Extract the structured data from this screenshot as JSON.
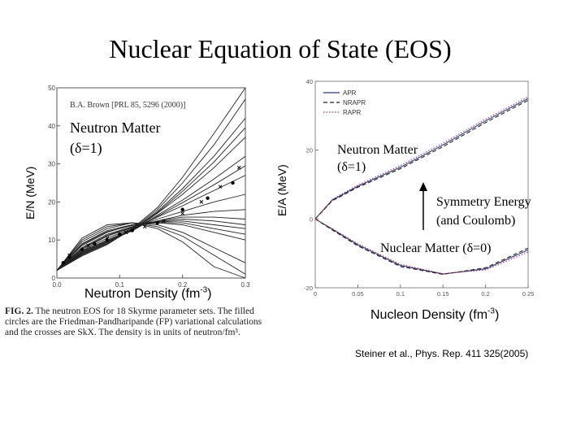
{
  "slide_title": "Nuclear Equation of State (EOS)",
  "citation": "Steiner et al., Phys. Rep. 411 325(2005)",
  "figure_caption": {
    "label": "FIG. 2.",
    "text": "The neutron EOS for 18 Skyrme parameter sets. The filled circles are the Friedman-Pandharipande (FP) variational calculations and the crosses are SkX. The density is in units of neutron/fm³."
  },
  "chart_data": [
    {
      "type": "line",
      "panel_label": "B.A. Brown [PRL 85, 5296 (2000)]",
      "annotation": "Neutron Matter (δ=1)",
      "xlabel": "Neutron Density (fm-3)",
      "ylabel": "E/N (MeV)",
      "xlim": [
        0,
        0.3
      ],
      "ylim": [
        0,
        50
      ],
      "x_ticks": [
        "0.0",
        "0.1",
        "0.2",
        "0.3"
      ],
      "y_ticks": [
        "0",
        "10",
        "20",
        "30",
        "40",
        "50"
      ],
      "series": [
        {
          "x": [
            0,
            0.04,
            0.08,
            0.12,
            0.16,
            0.2,
            0.25,
            0.3
          ],
          "y": [
            2,
            9,
            12.5,
            14,
            14.5,
            14,
            12,
            10
          ]
        },
        {
          "x": [
            0,
            0.04,
            0.08,
            0.12,
            0.16,
            0.2,
            0.25,
            0.3
          ],
          "y": [
            2,
            8.5,
            12,
            14,
            14.8,
            15,
            14,
            13
          ]
        },
        {
          "x": [
            0,
            0.04,
            0.08,
            0.12,
            0.16,
            0.2,
            0.25,
            0.3
          ],
          "y": [
            2,
            8,
            11.5,
            13.5,
            15,
            16,
            16,
            15.5
          ]
        },
        {
          "x": [
            0,
            0.04,
            0.08,
            0.12,
            0.16,
            0.2,
            0.25,
            0.3
          ],
          "y": [
            2,
            7.5,
            11,
            13.2,
            15,
            16.5,
            17.5,
            18
          ]
        },
        {
          "x": [
            0,
            0.04,
            0.08,
            0.12,
            0.16,
            0.2,
            0.25,
            0.3
          ],
          "y": [
            2,
            7.2,
            10.5,
            13,
            15.5,
            17.5,
            20,
            22
          ]
        },
        {
          "x": [
            0,
            0.04,
            0.08,
            0.12,
            0.16,
            0.2,
            0.25,
            0.3
          ],
          "y": [
            2,
            7,
            10,
            12.8,
            16,
            19,
            23,
            27
          ]
        },
        {
          "x": [
            0,
            0.04,
            0.08,
            0.12,
            0.16,
            0.2,
            0.25,
            0.3
          ],
          "y": [
            2,
            6.8,
            9.8,
            12.5,
            16.5,
            20.5,
            26,
            32
          ]
        },
        {
          "x": [
            0,
            0.04,
            0.08,
            0.12,
            0.16,
            0.2,
            0.25,
            0.3
          ],
          "y": [
            2,
            6.5,
            9.5,
            12.5,
            17,
            22,
            29,
            37
          ]
        },
        {
          "x": [
            0,
            0.04,
            0.08,
            0.12,
            0.16,
            0.2,
            0.25,
            0.3
          ],
          "y": [
            2,
            6.2,
            9.2,
            12.6,
            17.5,
            23.5,
            32,
            42
          ]
        },
        {
          "x": [
            0,
            0.04,
            0.08,
            0.12,
            0.16,
            0.2,
            0.25,
            0.3
          ],
          "y": [
            2,
            6,
            9,
            12.8,
            18,
            25,
            35,
            47
          ]
        },
        {
          "x": [
            0,
            0.04,
            0.08,
            0.12,
            0.16,
            0.2,
            0.25,
            0.3
          ],
          "y": [
            2,
            5.8,
            8.8,
            13,
            18.5,
            26.5,
            38,
            50
          ]
        },
        {
          "x": [
            0,
            0.04,
            0.08,
            0.12,
            0.16,
            0.2,
            0.25,
            0.3
          ],
          "y": [
            2,
            9.5,
            13,
            14.5,
            14,
            12,
            8,
            4
          ]
        },
        {
          "x": [
            0,
            0.04,
            0.08,
            0.12,
            0.16,
            0.2,
            0.25,
            0.3
          ],
          "y": [
            2,
            10,
            13.5,
            14.5,
            13.5,
            11,
            6,
            1
          ]
        },
        {
          "x": [
            0,
            0.04,
            0.08,
            0.12,
            0.16,
            0.2,
            0.25,
            0.3
          ],
          "y": [
            2,
            8.8,
            12.2,
            13.8,
            14.6,
            14.5,
            13,
            11.5
          ]
        },
        {
          "x": [
            0,
            0.04,
            0.08,
            0.12,
            0.16,
            0.2,
            0.25,
            0.3
          ],
          "y": [
            2,
            7.8,
            11.2,
            13.4,
            14.8,
            15.5,
            15,
            14
          ]
        },
        {
          "x": [
            0,
            0.04,
            0.08,
            0.12,
            0.16,
            0.2,
            0.25,
            0.3
          ],
          "y": [
            2,
            6.6,
            9.6,
            12.4,
            16.2,
            19.8,
            24.5,
            29.5
          ]
        },
        {
          "x": [
            0,
            0.04,
            0.08,
            0.12,
            0.16,
            0.2,
            0.25,
            0.3
          ],
          "y": [
            2,
            6.3,
            9.3,
            12.6,
            17.2,
            22.8,
            30.5,
            39.5
          ]
        },
        {
          "x": [
            0,
            0.04,
            0.08,
            0.12,
            0.16,
            0.2,
            0.25,
            0.3
          ],
          "y": [
            2,
            10.5,
            14,
            14.5,
            13,
            9.5,
            3,
            0
          ]
        }
      ],
      "fp_points": {
        "x": [
          0.01,
          0.02,
          0.04,
          0.06,
          0.08,
          0.1,
          0.12,
          0.16,
          0.2,
          0.24,
          0.28
        ],
        "y": [
          4,
          5.5,
          7.5,
          9,
          10,
          11.5,
          12.5,
          14.5,
          18,
          21,
          25
        ]
      },
      "skx_points": {
        "x": [
          0.02,
          0.05,
          0.08,
          0.11,
          0.14,
          0.17,
          0.2,
          0.23,
          0.26,
          0.29
        ],
        "y": [
          6,
          8.5,
          10.5,
          12,
          13.5,
          15,
          17,
          20,
          24,
          29
        ]
      }
    },
    {
      "type": "line",
      "annotation_neutron": "Neutron Matter (δ=1)",
      "annotation_symmetry_line1": "Symmetry Energy",
      "annotation_symmetry_line2": "(and Coulomb)",
      "annotation_nuclear": "Nuclear Matter (δ=0)",
      "xlabel": "Nucleon Density  (fm-3)",
      "ylabel": "E/A (MeV)",
      "xlim": [
        0,
        0.25
      ],
      "ylim": [
        -20,
        40
      ],
      "x_ticks": [
        "0",
        "0.05",
        "0.1",
        "0.15",
        "0.2",
        "0.25"
      ],
      "y_ticks": [
        "-20",
        "0",
        "20",
        "40"
      ],
      "legend_position": "top-left",
      "series": [
        {
          "name": "APR",
          "style": "solid",
          "neutron": {
            "x": [
              0,
              0.02,
              0.05,
              0.1,
              0.15,
              0.2,
              0.25
            ],
            "y": [
              0,
              5.5,
              9.5,
              15,
              21.5,
              28.5,
              35
            ]
          },
          "nuclear": {
            "x": [
              0,
              0.02,
              0.05,
              0.1,
              0.15,
              0.2,
              0.25
            ],
            "y": [
              0,
              -3,
              -7.5,
              -13.5,
              -16,
              -14.5,
              -9
            ]
          }
        },
        {
          "name": "NRAPR",
          "style": "dashed",
          "neutron": {
            "x": [
              0,
              0.02,
              0.05,
              0.1,
              0.15,
              0.2,
              0.25
            ],
            "y": [
              0,
              5.3,
              9.2,
              14.6,
              21,
              28,
              34.5
            ]
          },
          "nuclear": {
            "x": [
              0,
              0.02,
              0.05,
              0.1,
              0.15,
              0.2,
              0.25
            ],
            "y": [
              0,
              -3.2,
              -7.8,
              -13.8,
              -16.1,
              -14.2,
              -8.5
            ]
          }
        },
        {
          "name": "RAPR",
          "style": "dotted",
          "neutron": {
            "x": [
              0,
              0.02,
              0.05,
              0.1,
              0.15,
              0.2,
              0.25
            ],
            "y": [
              0,
              5.7,
              9.8,
              15.5,
              22,
              29,
              35.5
            ]
          },
          "nuclear": {
            "x": [
              0,
              0.02,
              0.05,
              0.1,
              0.15,
              0.2,
              0.25
            ],
            "y": [
              0,
              -2.8,
              -7.2,
              -13.2,
              -15.9,
              -14.8,
              -9.6
            ]
          }
        }
      ]
    }
  ]
}
